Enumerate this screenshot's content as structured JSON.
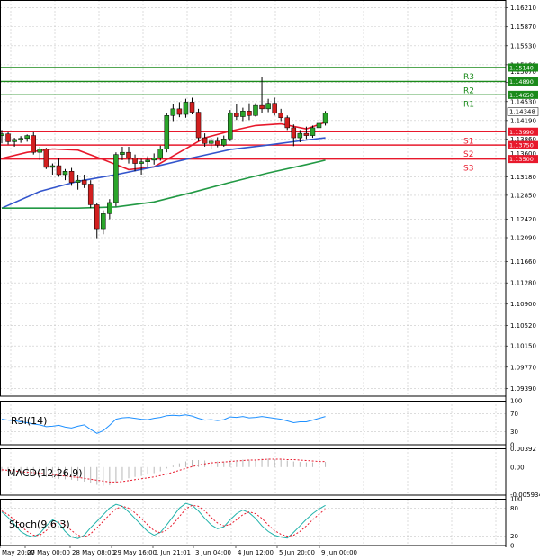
{
  "chart_data": {
    "type": "candlestick",
    "symbol_hint": "EURUSD H4-style",
    "main": {
      "ylim": [
        1.0925,
        1.1635
      ],
      "y_ticks": [
        "1.16210",
        "1.15870",
        "1.15530",
        "1.15190",
        "1.14870",
        "1.14530",
        "1.14190",
        "1.13860",
        "1.13520",
        "1.13180",
        "1.12850",
        "1.12420",
        "1.12090",
        "1.11660",
        "1.11280",
        "1.10900",
        "1.10520",
        "1.10150",
        "1.09770",
        "1.09390"
      ],
      "x_labels": [
        "May 20:00",
        "27 May 00:00",
        "28 May 08:00",
        "29 May 16:00",
        "1 Jun 21:01",
        "3 Jun 04:00",
        "4 Jun 12:00",
        "5 Jun 20:00",
        "9 Jun 00:00"
      ],
      "candles": [
        [
          1.1392,
          1.1402,
          1.1378,
          1.1395
        ],
        [
          1.1395,
          1.1398,
          1.1376,
          1.1381
        ],
        [
          1.1381,
          1.1388,
          1.1372,
          1.1385
        ],
        [
          1.1385,
          1.1391,
          1.1379,
          1.1387
        ],
        [
          1.1387,
          1.1394,
          1.1381,
          1.1392
        ],
        [
          1.1392,
          1.1398,
          1.1358,
          1.1362
        ],
        [
          1.1362,
          1.1372,
          1.1348,
          1.1368
        ],
        [
          1.1368,
          1.137,
          1.1332,
          1.1335
        ],
        [
          1.1335,
          1.1342,
          1.1322,
          1.1338
        ],
        [
          1.1338,
          1.1352,
          1.1318,
          1.1322
        ],
        [
          1.1322,
          1.1332,
          1.1312,
          1.1328
        ],
        [
          1.1328,
          1.1334,
          1.1302,
          1.1308
        ],
        [
          1.1308,
          1.1322,
          1.1295,
          1.1312
        ],
        [
          1.1312,
          1.1322,
          1.1298,
          1.1305
        ],
        [
          1.1305,
          1.1312,
          1.1262,
          1.1268
        ],
        [
          1.1268,
          1.1272,
          1.1208,
          1.1225
        ],
        [
          1.1225,
          1.1258,
          1.1215,
          1.1252
        ],
        [
          1.1252,
          1.1278,
          1.1242,
          1.1272
        ],
        [
          1.1272,
          1.1362,
          1.1265,
          1.1358
        ],
        [
          1.1358,
          1.1372,
          1.1348,
          1.1362
        ],
        [
          1.1362,
          1.1372,
          1.1342,
          1.1352
        ],
        [
          1.1352,
          1.1358,
          1.1328,
          1.1342
        ],
        [
          1.1342,
          1.135,
          1.1322,
          1.1345
        ],
        [
          1.1345,
          1.1355,
          1.1335,
          1.1348
        ],
        [
          1.1348,
          1.136,
          1.134,
          1.1352
        ],
        [
          1.1352,
          1.1374,
          1.1347,
          1.1368
        ],
        [
          1.1368,
          1.1432,
          1.1362,
          1.1428
        ],
        [
          1.1428,
          1.1448,
          1.1418,
          1.144
        ],
        [
          1.144,
          1.1452,
          1.1425,
          1.143
        ],
        [
          1.143,
          1.1458,
          1.1424,
          1.1452
        ],
        [
          1.1452,
          1.146,
          1.143,
          1.1434
        ],
        [
          1.1434,
          1.144,
          1.1382,
          1.1388
        ],
        [
          1.1388,
          1.1396,
          1.1372,
          1.1378
        ],
        [
          1.1378,
          1.1388,
          1.1368,
          1.1382
        ],
        [
          1.1382,
          1.1389,
          1.1371,
          1.1375
        ],
        [
          1.1375,
          1.1392,
          1.1372,
          1.1386
        ],
        [
          1.1386,
          1.1438,
          1.1382,
          1.1432
        ],
        [
          1.1432,
          1.1448,
          1.142,
          1.1426
        ],
        [
          1.1426,
          1.1442,
          1.1418,
          1.1436
        ],
        [
          1.1436,
          1.145,
          1.142,
          1.1428
        ],
        [
          1.1428,
          1.145,
          1.1426,
          1.1446
        ],
        [
          1.1446,
          1.1497,
          1.1432,
          1.144
        ],
        [
          1.144,
          1.1458,
          1.1434,
          1.145
        ],
        [
          1.145,
          1.146,
          1.1428,
          1.1432
        ],
        [
          1.1432,
          1.144,
          1.1418,
          1.1424
        ],
        [
          1.1424,
          1.1428,
          1.1402,
          1.1406
        ],
        [
          1.1406,
          1.1412,
          1.1373,
          1.1388
        ],
        [
          1.1388,
          1.1402,
          1.138,
          1.1396
        ],
        [
          1.1396,
          1.1408,
          1.1386,
          1.1392
        ],
        [
          1.1392,
          1.141,
          1.1388,
          1.1406
        ],
        [
          1.1406,
          1.1418,
          1.1401,
          1.1414
        ],
        [
          1.1414,
          1.1436,
          1.141,
          1.1432
        ]
      ],
      "series": [
        {
          "name": "MA fast",
          "color": "#e8192c",
          "x": [
            0,
            4,
            8,
            12,
            16,
            20,
            24,
            28,
            32,
            36,
            40,
            44,
            48,
            51
          ],
          "values": [
            1.1351,
            1.1362,
            1.1368,
            1.1366,
            1.1349,
            1.1331,
            1.1336,
            1.1362,
            1.1388,
            1.14,
            1.141,
            1.1413,
            1.1404,
            1.1416
          ]
        },
        {
          "name": "MA mid",
          "color": "#3355cc",
          "x": [
            0,
            6,
            12,
            18,
            24,
            30,
            36,
            42,
            48,
            51
          ],
          "values": [
            1.1262,
            1.1292,
            1.131,
            1.1322,
            1.1336,
            1.1352,
            1.1367,
            1.1375,
            1.1384,
            1.1388
          ]
        },
        {
          "name": "MA slow",
          "color": "#229944",
          "x": [
            0,
            6,
            12,
            18,
            24,
            30,
            36,
            42,
            48,
            51
          ],
          "values": [
            1.1262,
            1.1262,
            1.1262,
            1.1264,
            1.1273,
            1.129,
            1.1308,
            1.1325,
            1.134,
            1.1348
          ]
        }
      ],
      "levels": [
        {
          "name": "R3",
          "value": 1.1514,
          "label": "1.15140",
          "color": "#1a8a1a"
        },
        {
          "name": "R2",
          "value": 1.1489,
          "label": "1.14890",
          "color": "#1a8a1a"
        },
        {
          "name": "R1",
          "value": 1.1465,
          "label": "1.14650",
          "color": "#1a8a1a"
        },
        {
          "name": "S1",
          "value": 1.1399,
          "label": "1.13990",
          "color": "#e8192c"
        },
        {
          "name": "S2",
          "value": 1.1375,
          "label": "1.13750",
          "color": "#e8192c"
        },
        {
          "name": "S3",
          "value": 1.135,
          "label": "1.13500",
          "color": "#e8192c"
        }
      ],
      "current_price": {
        "value": 1.14348,
        "label": "1.14348"
      },
      "extra_labels": [
        "1.15070",
        "1.13960",
        "1.13600"
      ]
    },
    "rsi": {
      "title": "RSI(14)",
      "ylim": [
        0,
        100
      ],
      "y_ticks": [
        "100",
        "70",
        "30",
        "0"
      ],
      "values": [
        58,
        56,
        55,
        52,
        50,
        47,
        45,
        41,
        42,
        44,
        40,
        38,
        42,
        45,
        35,
        26,
        32,
        44,
        58,
        61,
        62,
        60,
        58,
        57,
        60,
        62,
        66,
        67,
        66,
        68,
        65,
        60,
        56,
        57,
        55,
        57,
        63,
        62,
        64,
        61,
        62,
        64,
        62,
        60,
        58,
        54,
        50,
        52,
        52,
        56,
        60,
        64
      ]
    },
    "macd": {
      "title": "MACD(12,26,9)",
      "ylim": [
        -0.006,
        0.004
      ],
      "y_ticks": [
        "0.00392",
        "0.00",
        "-0.005934"
      ],
      "histogram": [
        -0.0009,
        -0.001,
        -0.0012,
        -0.0014,
        -0.0015,
        -0.0017,
        -0.0019,
        -0.0021,
        -0.0023,
        -0.0025,
        -0.0026,
        -0.0027,
        -0.0029,
        -0.0031,
        -0.0034,
        -0.0038,
        -0.004,
        -0.0039,
        -0.0034,
        -0.0028,
        -0.0024,
        -0.0021,
        -0.0019,
        -0.0016,
        -0.0013,
        -0.0009,
        -0.0003,
        0.0003,
        0.0008,
        0.0012,
        0.0015,
        0.0015,
        0.0014,
        0.0013,
        0.0012,
        0.0012,
        0.0014,
        0.0015,
        0.0016,
        0.0016,
        0.0017,
        0.0018,
        0.0018,
        0.0017,
        0.0016,
        0.0014,
        0.0012,
        0.0011,
        0.001,
        0.001,
        0.001,
        0.0011
      ],
      "signal": [
        -0.0006,
        -0.0007,
        -0.0008,
        -0.001,
        -0.0011,
        -0.0012,
        -0.0013,
        -0.0015,
        -0.0016,
        -0.0018,
        -0.0019,
        -0.0021,
        -0.0022,
        -0.0024,
        -0.0026,
        -0.0028,
        -0.003,
        -0.0032,
        -0.0032,
        -0.0031,
        -0.0029,
        -0.0027,
        -0.0025,
        -0.0023,
        -0.0021,
        -0.0018,
        -0.0015,
        -0.0011,
        -0.0007,
        -0.0003,
        0.0001,
        0.0004,
        0.0007,
        0.0009,
        0.001,
        0.0011,
        0.0012,
        0.0013,
        0.0014,
        0.0015,
        0.0015,
        0.0016,
        0.0017,
        0.0017,
        0.0017,
        0.0016,
        0.0016,
        0.0015,
        0.0014,
        0.0013,
        0.0012,
        0.0012
      ]
    },
    "stoch": {
      "title": "Stoch(9,6,3)",
      "ylim": [
        0,
        100
      ],
      "y_ticks": [
        "100",
        "80",
        "20",
        "0"
      ],
      "k": [
        72,
        60,
        45,
        30,
        22,
        18,
        26,
        42,
        55,
        48,
        30,
        18,
        15,
        22,
        38,
        52,
        66,
        80,
        88,
        84,
        72,
        58,
        44,
        30,
        22,
        28,
        44,
        62,
        80,
        90,
        86,
        74,
        58,
        44,
        36,
        40,
        55,
        68,
        76,
        70,
        58,
        42,
        30,
        22,
        18,
        16,
        28,
        42,
        56,
        68,
        78,
        86
      ],
      "d": [
        74,
        66,
        55,
        42,
        30,
        22,
        22,
        32,
        44,
        50,
        44,
        32,
        22,
        18,
        25,
        38,
        52,
        66,
        78,
        84,
        80,
        70,
        58,
        44,
        32,
        27,
        33,
        46,
        62,
        78,
        86,
        84,
        74,
        60,
        48,
        42,
        45,
        55,
        66,
        72,
        68,
        58,
        44,
        32,
        24,
        20,
        22,
        30,
        42,
        55,
        67,
        78
      ]
    }
  }
}
